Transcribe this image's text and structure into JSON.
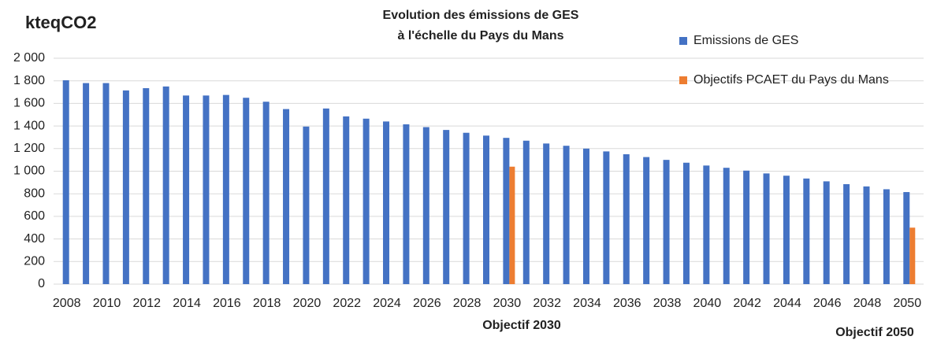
{
  "chart_data": {
    "type": "bar",
    "title": [
      "Evolution des émissions de GES",
      "à l'échelle du Pays du Mans"
    ],
    "y_label": "kteqCO2",
    "annotations": [
      "Objectif 2030",
      "Objectif 2050"
    ],
    "categories": [
      "2008",
      null,
      "2010",
      null,
      "2012",
      null,
      "2014",
      null,
      "2016",
      null,
      "2018",
      null,
      "2020",
      null,
      "2022",
      null,
      "2024",
      null,
      "2026",
      null,
      "2028",
      null,
      "2030",
      null,
      "2032",
      null,
      "2034",
      null,
      "2036",
      null,
      "2038",
      null,
      "2040",
      null,
      "2042",
      null,
      "2044",
      null,
      "2046",
      null,
      "2048",
      null,
      "2050"
    ],
    "series": [
      {
        "name": "Emissions de GES",
        "color": "#4472c4",
        "values": [
          1805,
          1780,
          1780,
          1715,
          1735,
          1750,
          1670,
          1670,
          1675,
          1650,
          1615,
          1550,
          1395,
          1555,
          1485,
          1465,
          1440,
          1415,
          1390,
          1365,
          1340,
          1315,
          1295,
          1270,
          1245,
          1225,
          1200,
          1175,
          1150,
          1125,
          1100,
          1075,
          1050,
          1030,
          1005,
          980,
          960,
          935,
          910,
          885,
          865,
          840,
          815
        ]
      },
      {
        "name": "Objectifs PCAET du Pays du Mans",
        "color": "#ed7d31",
        "values": [
          null,
          null,
          null,
          null,
          null,
          null,
          null,
          null,
          null,
          null,
          null,
          null,
          null,
          null,
          null,
          null,
          null,
          null,
          null,
          null,
          null,
          null,
          1040,
          null,
          null,
          null,
          null,
          null,
          null,
          null,
          null,
          null,
          null,
          null,
          null,
          null,
          null,
          null,
          null,
          null,
          null,
          null,
          500
        ]
      }
    ],
    "ylim": [
      0,
      2000
    ],
    "yticks": [
      0,
      200,
      400,
      600,
      800,
      {
        "value": 1000,
        "label": "1 000"
      },
      {
        "value": 1200,
        "label": "1 200"
      },
      {
        "value": 1400,
        "label": "1 400"
      },
      {
        "value": 1600,
        "label": "1 600"
      },
      {
        "value": 1800,
        "label": "1 800"
      },
      {
        "value": 2000,
        "label": "2 000"
      }
    ],
    "grid": true,
    "legend": "top-right"
  }
}
